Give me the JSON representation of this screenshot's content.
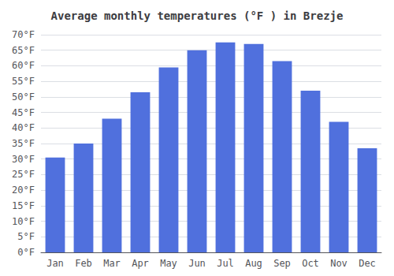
{
  "chart_data": {
    "type": "bar",
    "title": "Average monthly temperatures (°F ) in Brezje",
    "categories": [
      "Jan",
      "Feb",
      "Mar",
      "Apr",
      "May",
      "Jun",
      "Jul",
      "Aug",
      "Sep",
      "Oct",
      "Nov",
      "Dec"
    ],
    "values": [
      30.5,
      35.0,
      43.0,
      51.5,
      59.5,
      65.0,
      67.5,
      67.0,
      61.5,
      52.0,
      42.0,
      33.5
    ],
    "ylim": [
      0,
      70
    ],
    "yticks": [
      {
        "value": 0,
        "label": "0°F"
      },
      {
        "value": 5,
        "label": "5°F"
      },
      {
        "value": 10,
        "label": "10°F"
      },
      {
        "value": 15,
        "label": "15°F"
      },
      {
        "value": 20,
        "label": "20°F"
      },
      {
        "value": 25,
        "label": "25°F"
      },
      {
        "value": 30,
        "label": "30°F"
      },
      {
        "value": 35,
        "label": "35°F"
      },
      {
        "value": 40,
        "label": "40°F"
      },
      {
        "value": 45,
        "label": "45°F"
      },
      {
        "value": 50,
        "label": "50°F"
      },
      {
        "value": 55,
        "label": "55°F"
      },
      {
        "value": 60,
        "label": "60°F"
      },
      {
        "value": 65,
        "label": "65°F"
      },
      {
        "value": 70,
        "label": "70°F"
      }
    ],
    "grid": true
  }
}
